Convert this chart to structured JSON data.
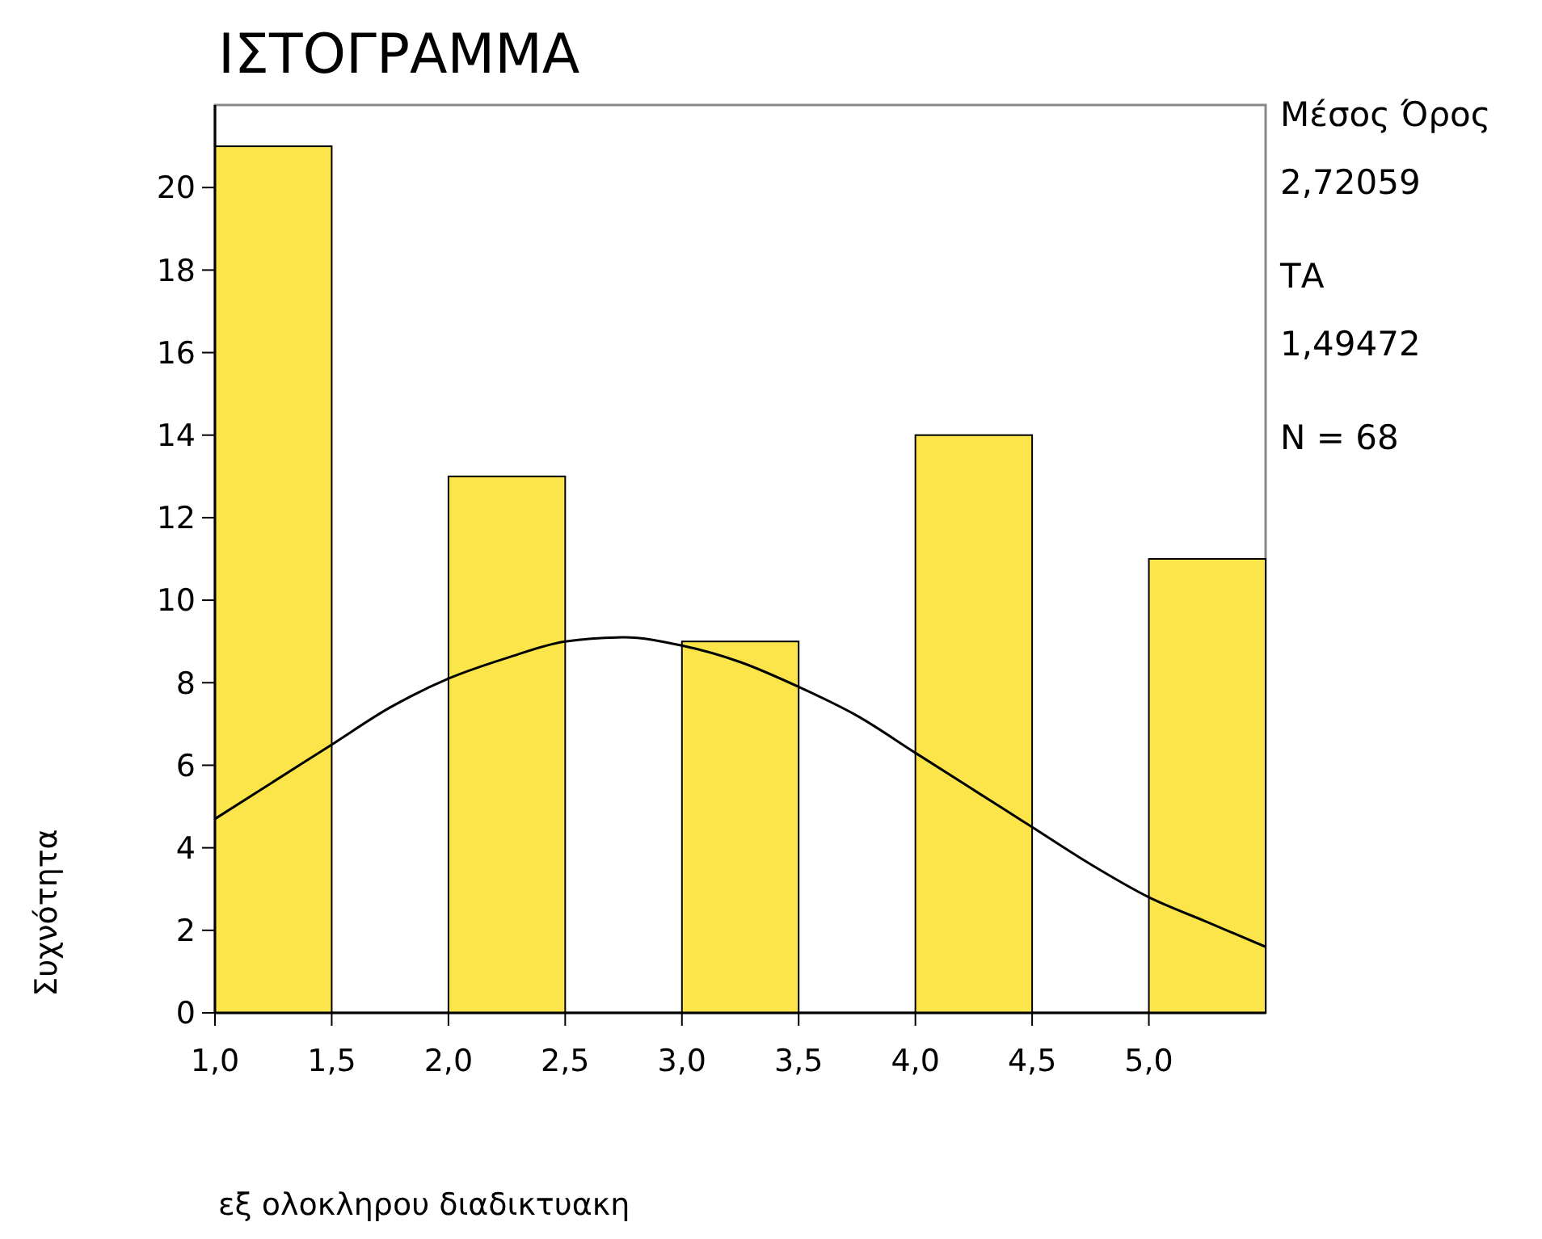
{
  "chart_data": {
    "type": "histogram",
    "title": "ΙΣΤΟΓΡΑΜΜΑ",
    "xlabel": "εξ ολοκληρου διαδικτυακη",
    "ylabel": "Συχνότητα",
    "bins": [
      1.0,
      1.5,
      2.0,
      2.5,
      3.0,
      3.5,
      4.0,
      4.5,
      5.0,
      5.5
    ],
    "values": [
      21,
      0,
      13,
      0,
      9,
      0,
      14,
      0,
      11
    ],
    "color": "#fbe54b",
    "series": [
      {
        "type": "line",
        "color": "#000000",
        "x": [
          1.0,
          1.25,
          1.5,
          1.75,
          2.0,
          2.25,
          2.5,
          2.75,
          3.0,
          3.25,
          3.5,
          3.75,
          4.0,
          4.25,
          4.5,
          4.75,
          5.0,
          5.25,
          5.5
        ],
        "values": [
          4.7,
          5.6,
          6.5,
          7.4,
          8.1,
          8.6,
          9.0,
          9.1,
          8.9,
          8.5,
          7.9,
          7.2,
          6.3,
          5.4,
          4.5,
          3.6,
          2.8,
          2.2,
          1.6
        ]
      }
    ],
    "xlim": [
      1.0,
      5.5
    ],
    "xticks": [
      {
        "value": 1.0,
        "label": "1,0"
      },
      {
        "value": 1.5,
        "label": "1,5"
      },
      {
        "value": 2.0,
        "label": "2,0"
      },
      {
        "value": 2.5,
        "label": "2,5"
      },
      {
        "value": 3.0,
        "label": "3,0"
      },
      {
        "value": 3.5,
        "label": "3,5"
      },
      {
        "value": 4.0,
        "label": "4,0"
      },
      {
        "value": 4.5,
        "label": "4,5"
      },
      {
        "value": 5.0,
        "label": "5,0"
      }
    ],
    "ylim": [
      0,
      22
    ],
    "yticks": [
      0,
      2,
      4,
      6,
      8,
      10,
      12,
      14,
      16,
      18,
      20
    ],
    "annotations": [
      "Μέσος Όρος",
      "2,72059",
      "ΤΑ",
      "1,49472",
      "N = 68"
    ]
  }
}
